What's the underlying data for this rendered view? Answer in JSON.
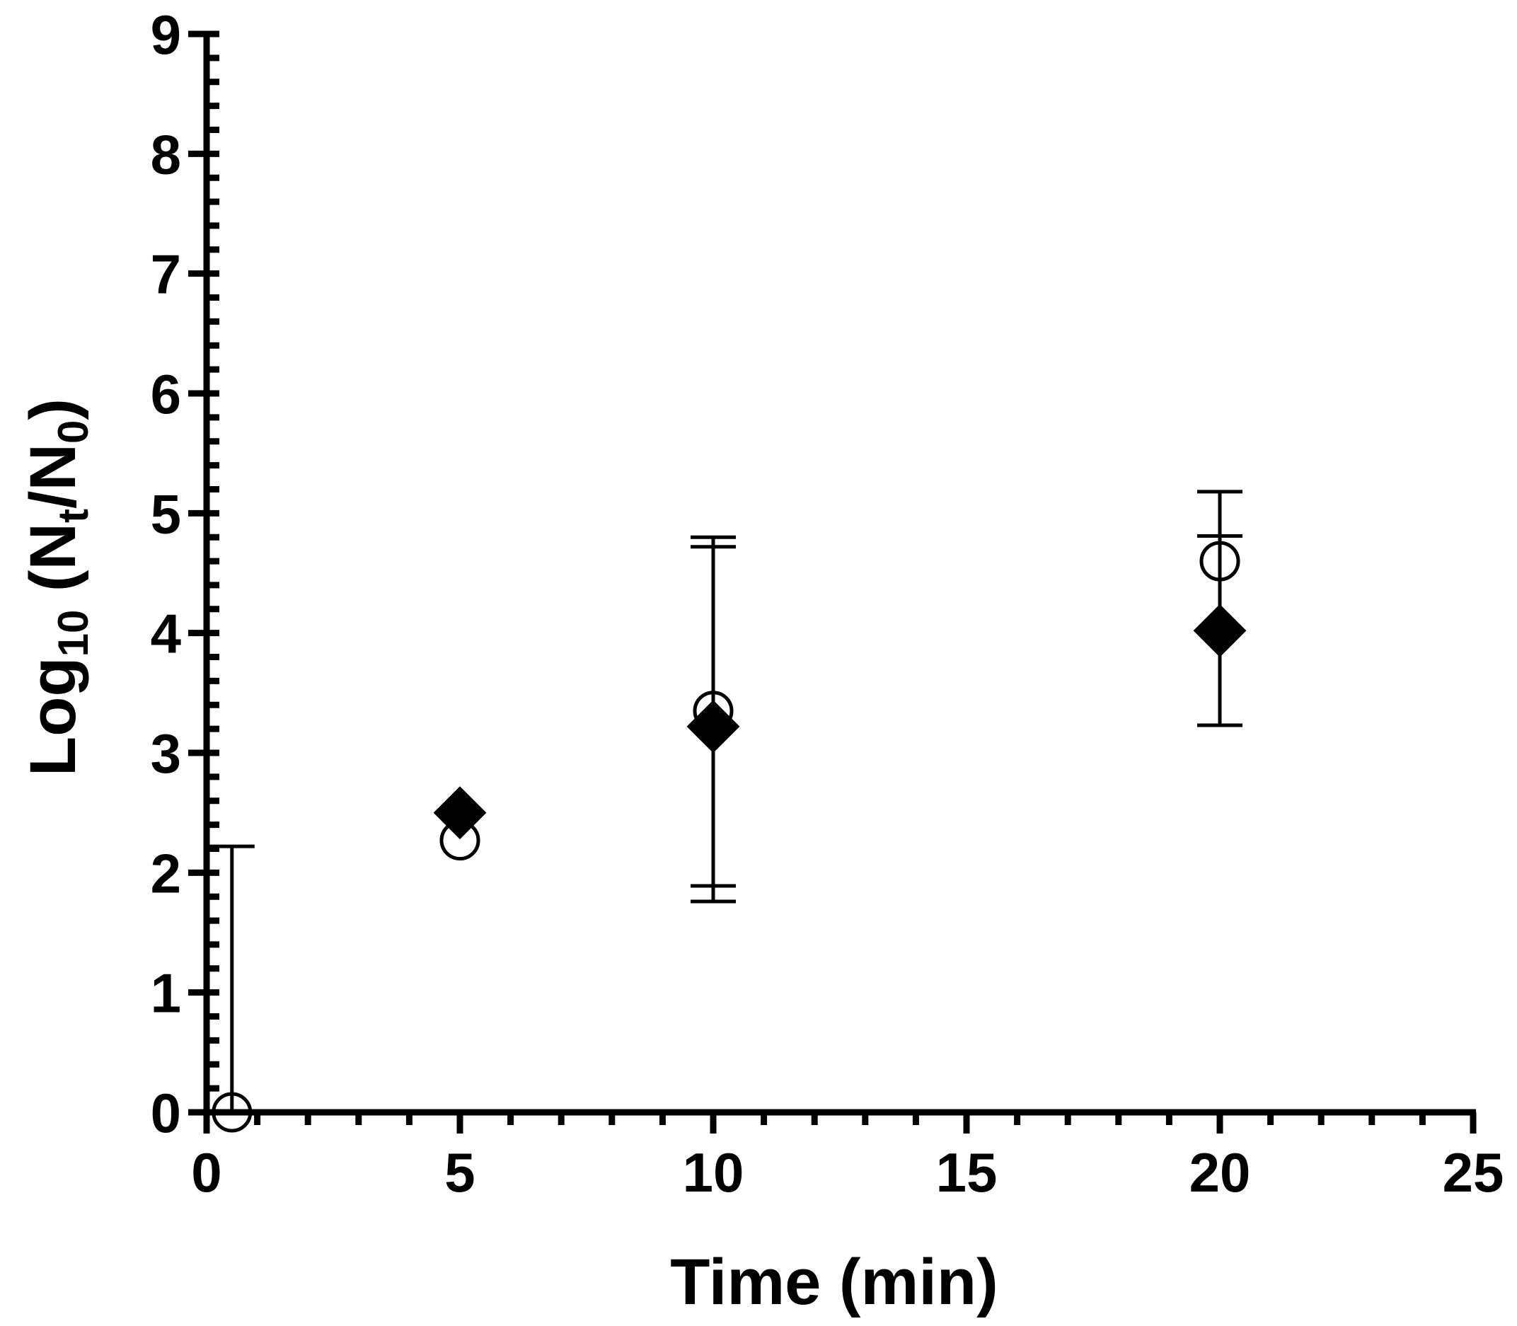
{
  "chart_data": {
    "type": "scatter",
    "xlim": [
      0,
      25
    ],
    "ylim": [
      0,
      9
    ],
    "x_ticks": [
      "0",
      "5",
      "10",
      "15",
      "20",
      "25"
    ],
    "y_ticks": [
      "0",
      "1",
      "2",
      "3",
      "4",
      "5",
      "6",
      "7",
      "8",
      "9"
    ],
    "x_minor_step": 1,
    "y_minor_step": 0.2,
    "xlabel": "Time (min)",
    "ylabel": {
      "main": "Log",
      "base": "10",
      "paren_open": " (N",
      "sub_t": "t",
      "slash": "/N",
      "sub_0": "0",
      "paren_close": ")"
    },
    "grid": false,
    "series": [
      {
        "marker": "open-circle",
        "points": [
          {
            "x": 0.5,
            "y": 0.0,
            "err_low": 0.0,
            "err_high": 2.22
          },
          {
            "x": 5,
            "y": 2.27
          },
          {
            "x": 10,
            "y": 3.35,
            "err_low": 1.76,
            "err_high": 4.8
          },
          {
            "x": 20,
            "y": 4.6,
            "err_low": 4.02,
            "err_high": 5.18
          }
        ]
      },
      {
        "marker": "filled-diamond",
        "points": [
          {
            "x": 5,
            "y": 2.5
          },
          {
            "x": 10,
            "y": 3.22,
            "err_low": 1.89,
            "err_high": 4.72
          },
          {
            "x": 20,
            "y": 4.02,
            "err_low": 3.23,
            "err_high": 4.81
          }
        ]
      }
    ]
  }
}
